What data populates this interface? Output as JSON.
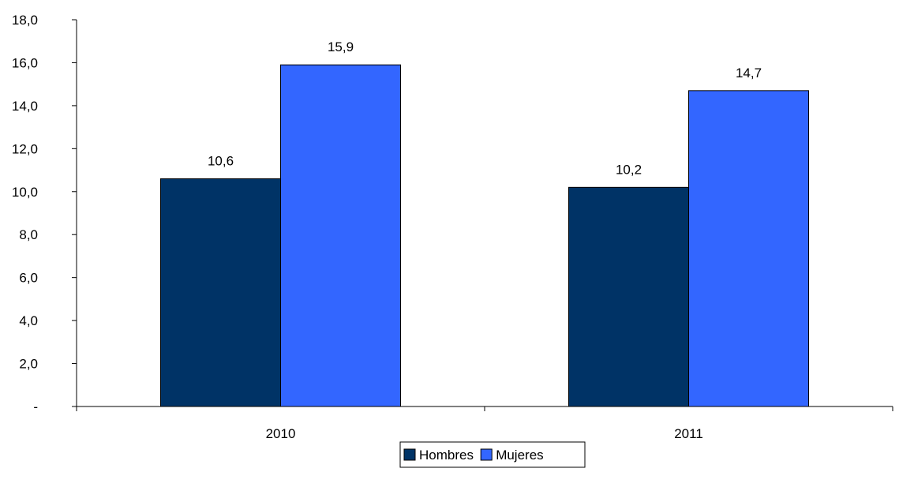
{
  "chart_data": {
    "type": "bar",
    "categories": [
      "2010",
      "2011"
    ],
    "series": [
      {
        "name": "Hombres",
        "values": [
          10.6,
          10.2
        ],
        "labels": [
          "10,6",
          "10,2"
        ],
        "color": "#003366"
      },
      {
        "name": "Mujeres",
        "values": [
          15.9,
          14.7
        ],
        "labels": [
          "15,9",
          "14,7"
        ],
        "color": "#3366FF"
      }
    ],
    "ylim": [
      0,
      18
    ],
    "yticks": [
      0,
      2,
      4,
      6,
      8,
      10,
      12,
      14,
      16,
      18
    ],
    "ytick_labels": [
      "-",
      "2,0",
      "4,0",
      "6,0",
      "8,0",
      "10,0",
      "12,0",
      "14,0",
      "16,0",
      "18,0"
    ],
    "grid": false,
    "legend_position": "bottom-center",
    "title": "",
    "xlabel": "",
    "ylabel": ""
  }
}
